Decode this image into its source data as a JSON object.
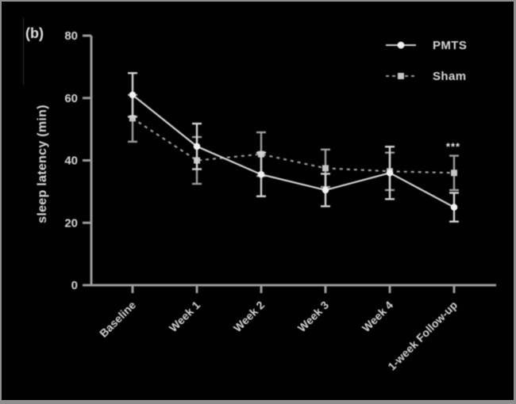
{
  "panel_label": "(b)",
  "chart_data": {
    "type": "line",
    "title": "",
    "xlabel": "",
    "ylabel": "sleep latency (min)",
    "ylim": [
      0,
      80
    ],
    "yticks": [
      0,
      20,
      40,
      60,
      80
    ],
    "grid": false,
    "legend_position": "top-right",
    "background": "#010101",
    "categories": [
      "Baseline",
      "Week 1",
      "Week 2",
      "Week 3",
      "Week 4",
      "1-week Follow-up"
    ],
    "series": [
      {
        "name": "Sham",
        "marker": "square",
        "line_style": "dashed",
        "color": "#9f9f9f",
        "marker_color": "#c6c6c6",
        "values": [
          53.5,
          40,
          42,
          37.5,
          36.5,
          36
        ],
        "error": [
          7.5,
          7.5,
          7,
          6,
          6,
          5.5
        ]
      },
      {
        "name": "PMTS",
        "marker": "circle",
        "line_style": "solid",
        "color": "#d5d5d5",
        "marker_color": "#f2f2f2",
        "values": [
          61,
          44.5,
          35.5,
          30.5,
          36,
          25
        ],
        "error": [
          7,
          7.3,
          7,
          5.2,
          8.4,
          4.6
        ]
      }
    ],
    "annotations": [
      {
        "text": "***",
        "category_index": 5,
        "y_value": 44
      }
    ]
  },
  "legend": {
    "items": [
      {
        "label": "PMTS"
      },
      {
        "label": "Sham"
      }
    ]
  },
  "colors": {
    "axis": "#9c9c9c",
    "tick_text": "#d6d6d6",
    "frame": "#8f8f8f"
  }
}
